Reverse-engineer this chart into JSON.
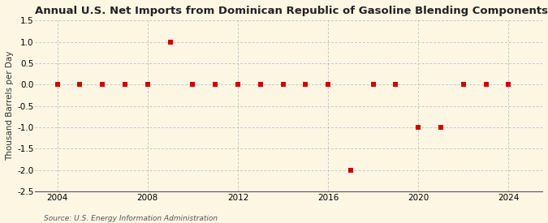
{
  "title": "Annual U.S. Net Imports from Dominican Republic of Gasoline Blending Components",
  "ylabel": "Thousand Barrels per Day",
  "source": "Source: U.S. Energy Information Administration",
  "background_color": "#fdf6e3",
  "years": [
    2004,
    2005,
    2006,
    2007,
    2008,
    2009,
    2010,
    2011,
    2012,
    2013,
    2014,
    2015,
    2016,
    2017,
    2018,
    2019,
    2020,
    2021,
    2022,
    2023,
    2024
  ],
  "values": [
    0.0,
    0.0,
    0.0,
    0.0,
    0.0,
    1.0,
    0.0,
    0.0,
    0.0,
    0.0,
    0.0,
    0.0,
    0.0,
    -2.0,
    0.0,
    0.0,
    -1.0,
    -1.0,
    0.0,
    0.0,
    0.0
  ],
  "marker_color": "#cc0000",
  "marker_size": 4,
  "xlim": [
    2003.0,
    2025.5
  ],
  "ylim": [
    -2.5,
    1.5
  ],
  "yticks": [
    -2.5,
    -2.0,
    -1.5,
    -1.0,
    -0.5,
    0.0,
    0.5,
    1.0,
    1.5
  ],
  "xticks": [
    2004,
    2008,
    2012,
    2016,
    2020,
    2024
  ],
  "grid_color": "#aaaaaa",
  "title_fontsize": 9.5,
  "label_fontsize": 7.5,
  "tick_fontsize": 7.5,
  "source_fontsize": 6.5
}
